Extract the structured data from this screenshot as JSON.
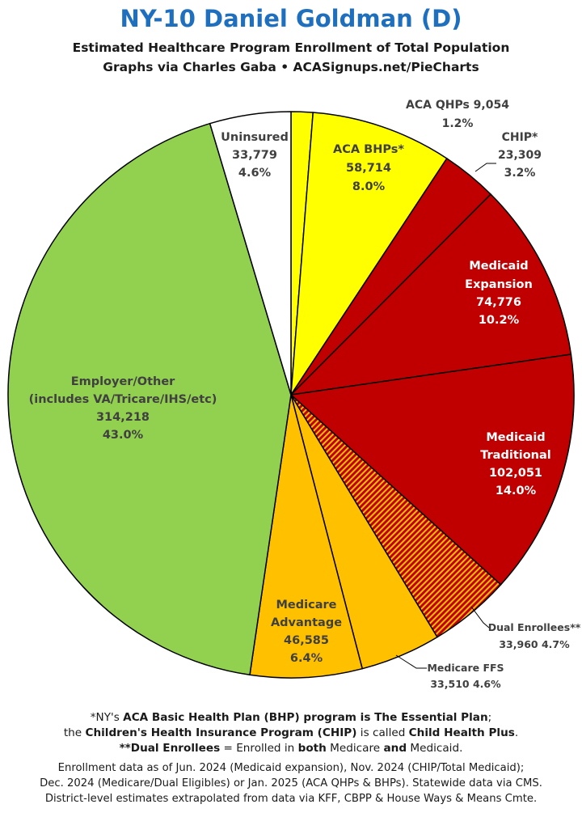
{
  "header": {
    "title": "NY-10 Daniel Goldman (D)",
    "subtitle": "Estimated Healthcare Program Enrollment of Total Population",
    "credit": "Graphs via Charles Gaba   •   ACASignups.net/PieCharts"
  },
  "chart_data": {
    "type": "pie",
    "start": "12 o'clock",
    "direction": "clockwise",
    "slices": [
      {
        "name": "ACA QHPs",
        "value": 9054,
        "value_label": "9,054",
        "percent_label": "1.2%",
        "color": "#ffff00",
        "pattern": "none"
      },
      {
        "name": "ACA BHPs*",
        "value": 58714,
        "value_label": "58,714",
        "percent_label": "8.0%",
        "color": "#ffff00",
        "pattern": "none"
      },
      {
        "name": "CHIP*",
        "value": 23309,
        "value_label": "23,309",
        "percent_label": "3.2%",
        "color": "#c00000",
        "pattern": "none"
      },
      {
        "name": "Medicaid Expansion",
        "value": 74776,
        "value_label": "74,776",
        "percent_label": "10.2%",
        "color": "#c00000",
        "pattern": "none"
      },
      {
        "name": "Medicaid Traditional",
        "value": 102051,
        "value_label": "102,051",
        "percent_label": "14.0%",
        "color": "#c00000",
        "pattern": "none"
      },
      {
        "name": "Dual Enrollees**",
        "value": 33960,
        "value_label": "33,960",
        "percent_label": "4.7%",
        "color": "#c00000",
        "pattern": "stripes",
        "pattern_color": "#ffc000"
      },
      {
        "name": "Medicare FFS",
        "value": 33510,
        "value_label": "33,510",
        "percent_label": "4.6%",
        "color": "#ffc000",
        "pattern": "none"
      },
      {
        "name": "Medicare Advantage",
        "value": 46585,
        "value_label": "46,585",
        "percent_label": "6.4%",
        "color": "#ffc000",
        "pattern": "none"
      },
      {
        "name": "Employer/Other",
        "value": 314218,
        "value_label": "314,218",
        "percent_label": "43.0%",
        "color": "#92d050",
        "pattern": "none"
      },
      {
        "name": "Uninsured",
        "value": 33779,
        "value_label": "33,779",
        "percent_label": "4.6%",
        "color": "#ffffff",
        "pattern": "none"
      }
    ],
    "labels": {
      "qhp": "ACA QHPs 9,054",
      "qhp_pct": "1.2%",
      "bhp_name": "ACA BHPs*",
      "chip_name": "CHIP*",
      "exp_name1": "Medicaid",
      "exp_name2": "Expansion",
      "trad_name1": "Medicaid",
      "trad_name2": "Traditional",
      "dual_name": "Dual Enrollees**",
      "dual_vals": "33,960 4.7%",
      "ffs_name": "Medicare FFS",
      "ffs_vals": "33,510 4.6%",
      "ma_name1": "Medicare",
      "ma_name2": "Advantage",
      "emp_name1": "Employer/Other",
      "emp_name2": "(includes VA/Tricare/IHS/etc)",
      "unins_name": "Uninsured"
    }
  },
  "footnotes": {
    "line1_a": "*NY's ",
    "line1_b": "ACA Basic Health Plan (BHP) program is The Essential Plan",
    "line1_c": ";",
    "line2_a": "the ",
    "line2_b": "Children's Health Insurance Program (CHIP)",
    "line2_c": " is called ",
    "line2_d": "Child Health Plus",
    "line2_e": ".",
    "line3_a": "**Dual Enrollees",
    "line3_b": " = Enrolled in ",
    "line3_c": "both",
    "line3_d": " Medicare ",
    "line3_e": "and",
    "line3_f": " Medicaid."
  },
  "sources": {
    "line1": "Enrollment data as of Jun. 2024 (Medicaid expansion), Nov. 2024 (CHIP/Total Medicaid);",
    "line2": "Dec. 2024 (Medicare/Dual Eligibles) or Jan. 2025 (ACA QHPs & BHPs). Statewide data via CMS.",
    "line3": "District-level estimates extrapolated from data via KFF, CBPP & House Ways & Means Cmte."
  }
}
